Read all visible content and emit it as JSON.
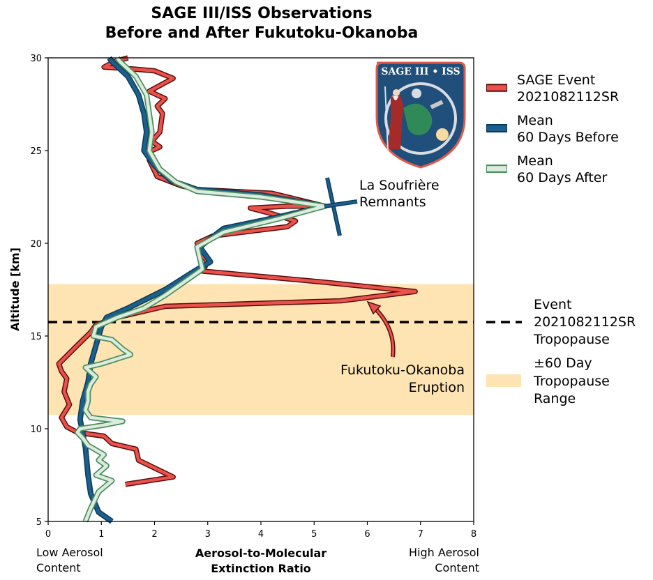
{
  "title_line1": "SAGE III/ISS Observations",
  "title_line2": "Before and After Fukutoku-Okanoba",
  "chart_data": {
    "type": "line",
    "xlabel_line1": "Aerosol-to-Molecular",
    "xlabel_line2": "Extinction Ratio",
    "ylabel": "Altitude [km]",
    "xlim": [
      0,
      8
    ],
    "ylim": [
      5,
      30
    ],
    "xticks": [
      "0",
      "1",
      "2",
      "3",
      "4",
      "5",
      "6",
      "7",
      "8"
    ],
    "yticks": [
      "5",
      "10",
      "15",
      "20",
      "25",
      "30"
    ],
    "x_low_label_line1": "Low Aerosol",
    "x_low_label_line2": "Content",
    "x_high_label_line1": "High Aerosol",
    "x_high_label_line2": "Content",
    "tropopause_altitude": 15.75,
    "tropopause_range": [
      10.75,
      17.8
    ],
    "series": [
      {
        "name_line1": "SAGE Event",
        "name_line2": "2021082112SR",
        "color": "#e8524a",
        "points": [
          [
            1.45,
            7.0
          ],
          [
            2.35,
            7.4
          ],
          [
            1.7,
            8.3
          ],
          [
            1.65,
            8.9
          ],
          [
            1.2,
            9.2
          ],
          [
            1.05,
            9.6
          ],
          [
            0.55,
            9.8
          ],
          [
            0.35,
            10.1
          ],
          [
            0.25,
            10.6
          ],
          [
            0.4,
            11.3
          ],
          [
            0.3,
            12.0
          ],
          [
            0.35,
            12.7
          ],
          [
            0.25,
            13.1
          ],
          [
            0.2,
            13.5
          ],
          [
            0.55,
            14.5
          ],
          [
            0.8,
            15.2
          ],
          [
            0.9,
            15.6
          ],
          [
            1.3,
            16.0
          ],
          [
            2.2,
            16.6
          ],
          [
            5.5,
            16.9
          ],
          [
            6.9,
            17.4
          ],
          [
            5.2,
            17.9
          ],
          [
            3.3,
            18.4
          ],
          [
            2.9,
            18.5
          ],
          [
            3.0,
            19.0
          ],
          [
            2.85,
            19.5
          ],
          [
            2.8,
            20.0
          ],
          [
            3.1,
            20.4
          ],
          [
            4.5,
            20.9
          ],
          [
            4.65,
            21.2
          ],
          [
            4.2,
            21.6
          ],
          [
            3.8,
            21.9
          ],
          [
            4.5,
            22.0
          ],
          [
            5.2,
            22.0
          ],
          [
            4.2,
            22.7
          ],
          [
            2.8,
            22.9
          ],
          [
            2.5,
            23.1
          ],
          [
            2.05,
            23.6
          ],
          [
            1.9,
            24.5
          ],
          [
            1.95,
            25.0
          ],
          [
            2.1,
            25.2
          ],
          [
            1.95,
            25.5
          ],
          [
            2.1,
            26.0
          ],
          [
            2.15,
            27.0
          ],
          [
            2.05,
            27.4
          ],
          [
            2.2,
            27.8
          ],
          [
            1.9,
            28.2
          ],
          [
            2.35,
            28.9
          ],
          [
            2.0,
            29.3
          ],
          [
            1.6,
            29.4
          ],
          [
            1.05,
            29.5
          ],
          [
            1.25,
            29.8
          ],
          [
            1.5,
            30.0
          ]
        ]
      },
      {
        "name_line1": "Mean",
        "name_line2": "60 Days Before",
        "color": "#1d5f8c",
        "points": [
          [
            1.2,
            5.0
          ],
          [
            0.95,
            5.5
          ],
          [
            0.8,
            6.5
          ],
          [
            0.75,
            7.5
          ],
          [
            0.7,
            9.0
          ],
          [
            0.6,
            10.5
          ],
          [
            0.65,
            11.5
          ],
          [
            0.75,
            12.5
          ],
          [
            0.8,
            13.5
          ],
          [
            0.9,
            14.5
          ],
          [
            1.0,
            15.5
          ],
          [
            1.1,
            16.0
          ],
          [
            1.5,
            16.5
          ],
          [
            2.2,
            17.5
          ],
          [
            2.75,
            18.5
          ],
          [
            3.05,
            19.0
          ],
          [
            2.85,
            19.8
          ],
          [
            3.3,
            20.8
          ],
          [
            4.3,
            21.4
          ],
          [
            5.2,
            22.0
          ],
          [
            4.0,
            22.6
          ],
          [
            2.8,
            22.9
          ],
          [
            2.3,
            23.4
          ],
          [
            2.0,
            24.2
          ],
          [
            1.8,
            25.0
          ],
          [
            1.85,
            26.0
          ],
          [
            1.8,
            27.0
          ],
          [
            1.7,
            28.0
          ],
          [
            1.5,
            29.0
          ],
          [
            1.2,
            29.8
          ],
          [
            1.15,
            30.0
          ]
        ]
      },
      {
        "name_line1": "Mean",
        "name_line2": "60 Days After",
        "color": "#8fc39b",
        "points": [
          [
            0.7,
            5.0
          ],
          [
            0.8,
            5.7
          ],
          [
            0.95,
            6.6
          ],
          [
            1.2,
            7.2
          ],
          [
            0.9,
            7.5
          ],
          [
            1.1,
            8.0
          ],
          [
            0.95,
            8.3
          ],
          [
            1.05,
            8.6
          ],
          [
            0.75,
            9.1
          ],
          [
            0.65,
            9.5
          ],
          [
            0.55,
            9.8
          ],
          [
            0.6,
            10.0
          ],
          [
            1.05,
            10.2
          ],
          [
            1.4,
            10.4
          ],
          [
            0.8,
            10.6
          ],
          [
            0.7,
            11.0
          ],
          [
            0.75,
            11.5
          ],
          [
            0.75,
            12.0
          ],
          [
            0.8,
            12.4
          ],
          [
            0.9,
            12.8
          ],
          [
            0.7,
            13.3
          ],
          [
            1.0,
            13.5
          ],
          [
            1.55,
            14.0
          ],
          [
            1.4,
            14.3
          ],
          [
            1.2,
            14.8
          ],
          [
            0.85,
            15.0
          ],
          [
            0.9,
            15.5
          ],
          [
            1.3,
            16.0
          ],
          [
            1.8,
            16.5
          ],
          [
            2.2,
            17.2
          ],
          [
            2.6,
            18.0
          ],
          [
            2.9,
            18.6
          ],
          [
            2.85,
            19.2
          ],
          [
            2.8,
            19.8
          ],
          [
            3.3,
            20.6
          ],
          [
            4.3,
            21.3
          ],
          [
            5.2,
            22.0
          ],
          [
            4.0,
            22.5
          ],
          [
            2.8,
            22.8
          ],
          [
            2.4,
            23.3
          ],
          [
            2.1,
            24.0
          ],
          [
            1.9,
            25.0
          ],
          [
            1.95,
            26.0
          ],
          [
            1.9,
            27.0
          ],
          [
            1.85,
            28.0
          ],
          [
            1.65,
            29.0
          ],
          [
            1.35,
            29.8
          ],
          [
            1.3,
            30.0
          ]
        ]
      }
    ],
    "annotations": {
      "la_soufriere_line1": "La Soufrière",
      "la_soufriere_line2": "Remnants",
      "fukutoku_line1": "Fukutoku-Okanoba",
      "fukutoku_line2": "Eruption"
    },
    "tropopause_legend_line1": "Event",
    "tropopause_legend_line2": "2021082112SR",
    "tropopause_legend_line3": "Tropopause",
    "range_legend_line1": "±60 Day",
    "range_legend_line2": "Tropopause",
    "range_legend_line3": "Range",
    "colors": {
      "band": "#fde4b2",
      "tropopause": "#000000"
    }
  },
  "logo_text": "SAGE III • ISS"
}
